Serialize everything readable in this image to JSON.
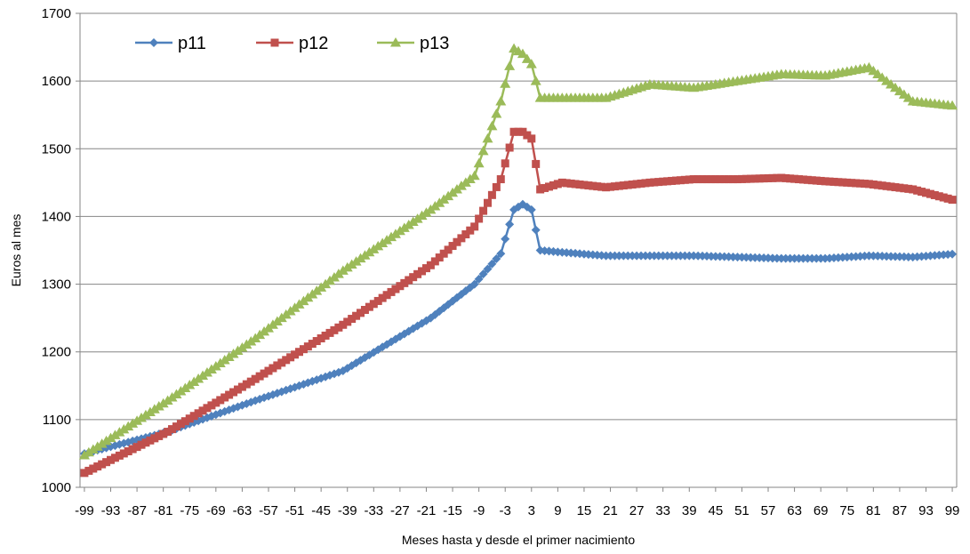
{
  "chart_data": {
    "type": "line",
    "title": "",
    "xlabel": "Meses hasta y desde el primer nacimiento",
    "ylabel": "Euros al mes",
    "xlim": [
      -100,
      100
    ],
    "ylim": [
      1000,
      1700
    ],
    "yticks": [
      1000,
      1100,
      1200,
      1300,
      1400,
      1500,
      1600,
      1700
    ],
    "xticks": [
      -99,
      -93,
      -87,
      -81,
      -75,
      -69,
      -63,
      -57,
      -51,
      -45,
      -39,
      -33,
      -27,
      -21,
      -15,
      -9,
      -3,
      3,
      9,
      15,
      21,
      27,
      33,
      39,
      45,
      51,
      57,
      63,
      69,
      75,
      81,
      87,
      93,
      99
    ],
    "grid": "horizontal",
    "legend": "top-left",
    "x_breakpoints": [
      -100,
      -80,
      -60,
      -40,
      -20,
      -10,
      -4,
      -1,
      1,
      3,
      5,
      10,
      20,
      30,
      40,
      50,
      60,
      70,
      80,
      90,
      100
    ],
    "series": [
      {
        "name": "p11",
        "color": "#4f81bd",
        "marker": "diamond",
        "values": [
          1048,
          1082,
          1128,
          1172,
          1250,
          1300,
          1345,
          1410,
          1418,
          1410,
          1350,
          1347,
          1342,
          1342,
          1342,
          1340,
          1338,
          1338,
          1342,
          1340,
          1345
        ]
      },
      {
        "name": "p12",
        "color": "#c0504d",
        "marker": "square",
        "values": [
          1018,
          1082,
          1160,
          1240,
          1328,
          1385,
          1455,
          1525,
          1525,
          1515,
          1440,
          1450,
          1443,
          1450,
          1455,
          1455,
          1457,
          1452,
          1448,
          1440,
          1423
        ]
      },
      {
        "name": "p13",
        "color": "#9bbb59",
        "marker": "triangle",
        "values": [
          1043,
          1128,
          1220,
          1320,
          1410,
          1460,
          1570,
          1648,
          1640,
          1625,
          1575,
          1575,
          1575,
          1595,
          1590,
          1600,
          1610,
          1608,
          1620,
          1570,
          1563
        ]
      }
    ]
  }
}
